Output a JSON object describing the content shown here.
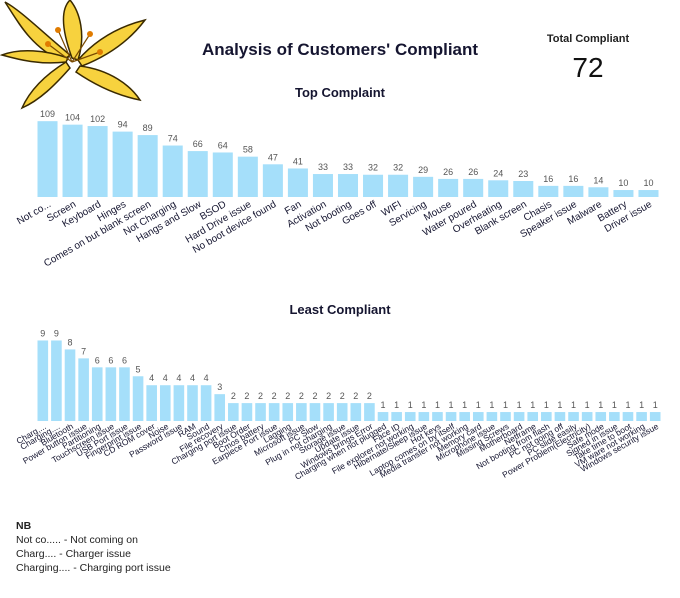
{
  "title": "Analysis of Customers' Compliant",
  "total": {
    "label": "Total Compliant",
    "value": "72"
  },
  "notes": {
    "heading": "NB",
    "lines": [
      "Not co..... - Not coming on",
      "Charg.... - Charger issue",
      "Charging.... - Charging port issue"
    ]
  },
  "colors": {
    "bar": "#a5dffa",
    "text": "#151530"
  },
  "chart_data": [
    {
      "type": "bar",
      "title": "Top Complaint",
      "categories": [
        "Not co...",
        "Screen",
        "Keyboard",
        "Hinges",
        "Comes on but blank screen",
        "Not Charging",
        "Hangs and Slow",
        "BSOD",
        "Hard Drive issue",
        "No boot device found",
        "Fan",
        "Activation",
        "Not booting",
        "Goes off",
        "WIFI",
        "Servicing",
        "Mouse",
        "Water poured",
        "Overheating",
        "Blank screen",
        "Chasis",
        "Speaker issue",
        "Malware",
        "Battery",
        "Driver issue"
      ],
      "values": [
        109,
        104,
        102,
        94,
        89,
        74,
        66,
        64,
        58,
        47,
        41,
        33,
        33,
        32,
        32,
        29,
        26,
        26,
        24,
        23,
        16,
        16,
        14,
        10,
        10
      ],
      "ylim": [
        0,
        115
      ],
      "grid": false
    },
    {
      "type": "bar",
      "title": "Least Compliant",
      "categories": [
        "Charg....",
        "Charging....",
        "Bluetooth",
        "Power button issue",
        "Partitioning",
        "Touchscreen issue",
        "USB Port issue",
        "Fingerprint issue",
        "CD ROM cover",
        "Noise",
        "Password issue",
        "RAM",
        "Sound",
        "File recovery",
        "Charging port issue",
        "Boot Order",
        "Cmos battery",
        "Earpiece Port issue",
        "Lagging",
        "Microsoft issue",
        "PC Slow",
        "Plug in not charging",
        "Storage issue",
        "Update issue",
        "Windows brings Error",
        "Charging when not plugged",
        "Face ID",
        "File explorer not working",
        "Hibernate/Sleep issue",
        "Hot keys",
        "Laptop comes on by itself",
        "Media transfer not working",
        "Memory card",
        "Microphone issue",
        "Missing Screws",
        "Motherboard",
        "Netframe",
        "Not booting from flash",
        "PC not going off",
        "PC slide easily",
        "Power Problem(Electricity)",
        "Safe mode",
        "Signed in issue",
        "Take time to boot",
        "VM ware not working",
        "Windows security issue"
      ],
      "values": [
        9,
        9,
        8,
        7,
        6,
        6,
        6,
        5,
        4,
        4,
        4,
        4,
        4,
        3,
        2,
        2,
        2,
        2,
        2,
        2,
        2,
        2,
        2,
        2,
        2,
        1,
        1,
        1,
        1,
        1,
        1,
        1,
        1,
        1,
        1,
        1,
        1,
        1,
        1,
        1,
        1,
        1,
        1,
        1,
        1,
        1
      ],
      "ylim": [
        0,
        9.5
      ],
      "grid": false
    }
  ]
}
